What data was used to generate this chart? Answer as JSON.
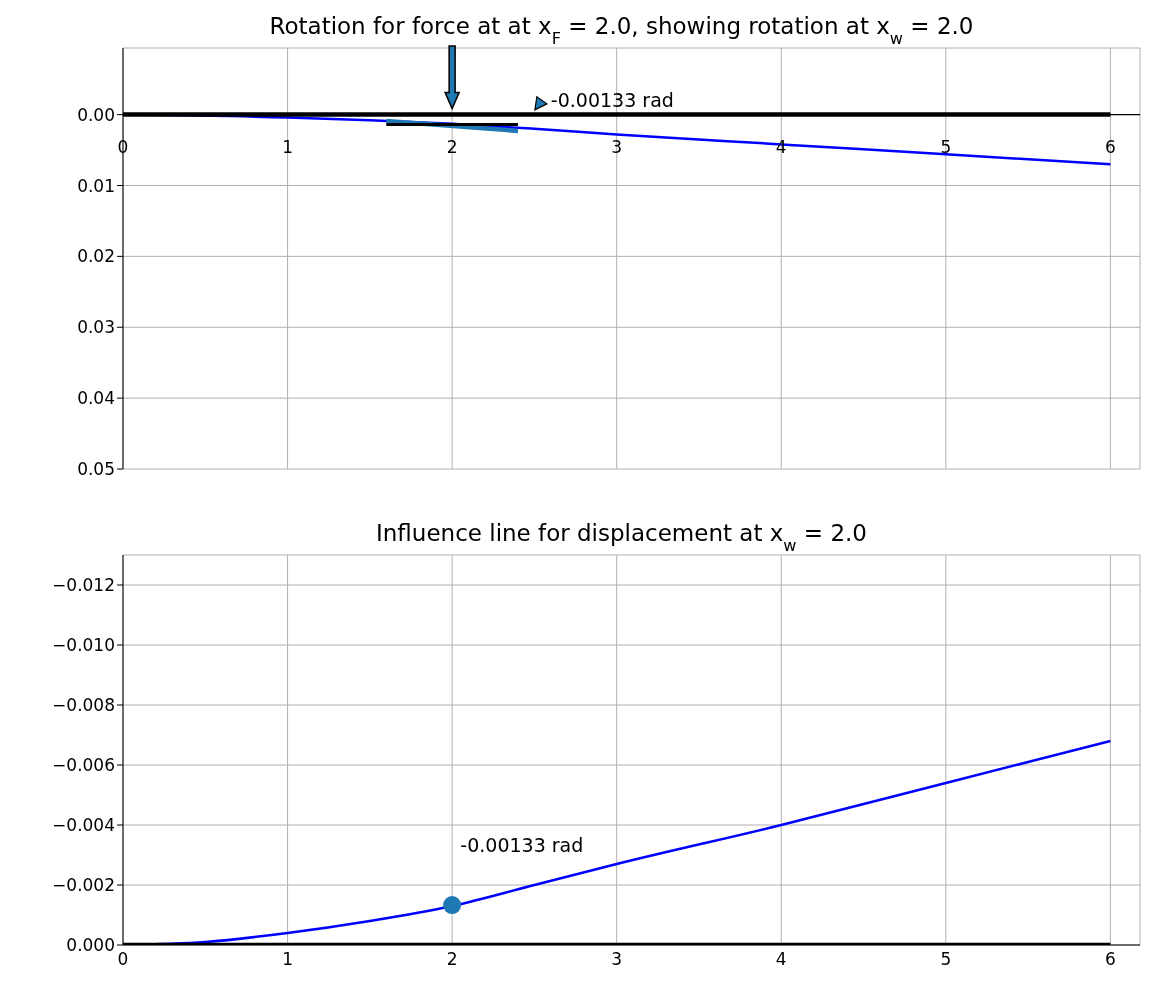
{
  "chart_data": [
    {
      "type": "line",
      "title": "Rotation for force at at x$_{F}$ = 2.0, showing rotation at x$_{w}$ = 2.0",
      "xlim": [
        0,
        6.18
      ],
      "xticks": [
        0,
        1,
        2,
        3,
        4,
        5,
        6
      ],
      "ylim": [
        0.05,
        -0.0094
      ],
      "yticks": [
        {
          "value": 0,
          "label": "0.00"
        },
        {
          "value": 0.01,
          "label": "0.01"
        },
        {
          "value": 0.02,
          "label": "0.02"
        },
        {
          "value": 0.03,
          "label": "0.03"
        },
        {
          "value": 0.04,
          "label": "0.04"
        },
        {
          "value": 0.05,
          "label": "0.05"
        }
      ],
      "grid": true,
      "series": [
        {
          "color": "#0000ff",
          "x": [
            0,
            0.5,
            1,
            1.5,
            2,
            2.5,
            3,
            4,
            5,
            6
          ],
          "values": [
            0,
            null,
            0.0004,
            0.0008,
            0.0013,
            0.002,
            0.0028,
            0.0042,
            0.0056,
            0.007
          ]
        },
        {
          "color": "#000000",
          "x": [
            0,
            6
          ],
          "values": [
            0,
            0
          ]
        },
        {
          "color": "#1f77b4",
          "x": [
            1.6,
            2.4
          ],
          "values": [
            0.0009,
            0.0023
          ]
        },
        {
          "color": "#000000",
          "x": [
            1.6,
            2.4
          ],
          "values": [
            0.0014,
            0.0014
          ]
        }
      ],
      "annotations": [
        "-0.00133 rad"
      ]
    },
    {
      "type": "line",
      "title": "Influence line for displacement at x$_{w}$ = 2.0",
      "xlim": [
        0,
        6.18
      ],
      "xticks": [
        0,
        1,
        2,
        3,
        4,
        5,
        6
      ],
      "ylim": [
        0,
        -0.013
      ],
      "yticks": [
        {
          "value": 0,
          "label": "0.000"
        },
        {
          "value": -0.002,
          "label": "−0.002"
        },
        {
          "value": -0.004,
          "label": "−0.004"
        },
        {
          "value": -0.006,
          "label": "−0.006"
        },
        {
          "value": -0.008,
          "label": "−0.008"
        },
        {
          "value": -0.01,
          "label": "−0.010"
        },
        {
          "value": -0.012,
          "label": "−0.012"
        }
      ],
      "grid": true,
      "series": [
        {
          "color": "#0000ff",
          "x": [
            0,
            0.5,
            1,
            1.5,
            2,
            2.5,
            3,
            4,
            5,
            6
          ],
          "values": [
            0,
            -0.0001,
            -0.0004,
            -0.0008,
            -0.0013,
            -0.002,
            -0.0027,
            -0.004,
            -0.0054,
            -0.0068
          ]
        },
        {
          "color": "#000000",
          "x": [
            0,
            6
          ],
          "values": [
            0,
            0
          ]
        },
        {
          "type": "scatter",
          "color": "#1f77b4",
          "x": [
            2
          ],
          "values": [
            -0.00133
          ]
        }
      ],
      "annotations": [
        "-0.00133 rad"
      ]
    }
  ]
}
